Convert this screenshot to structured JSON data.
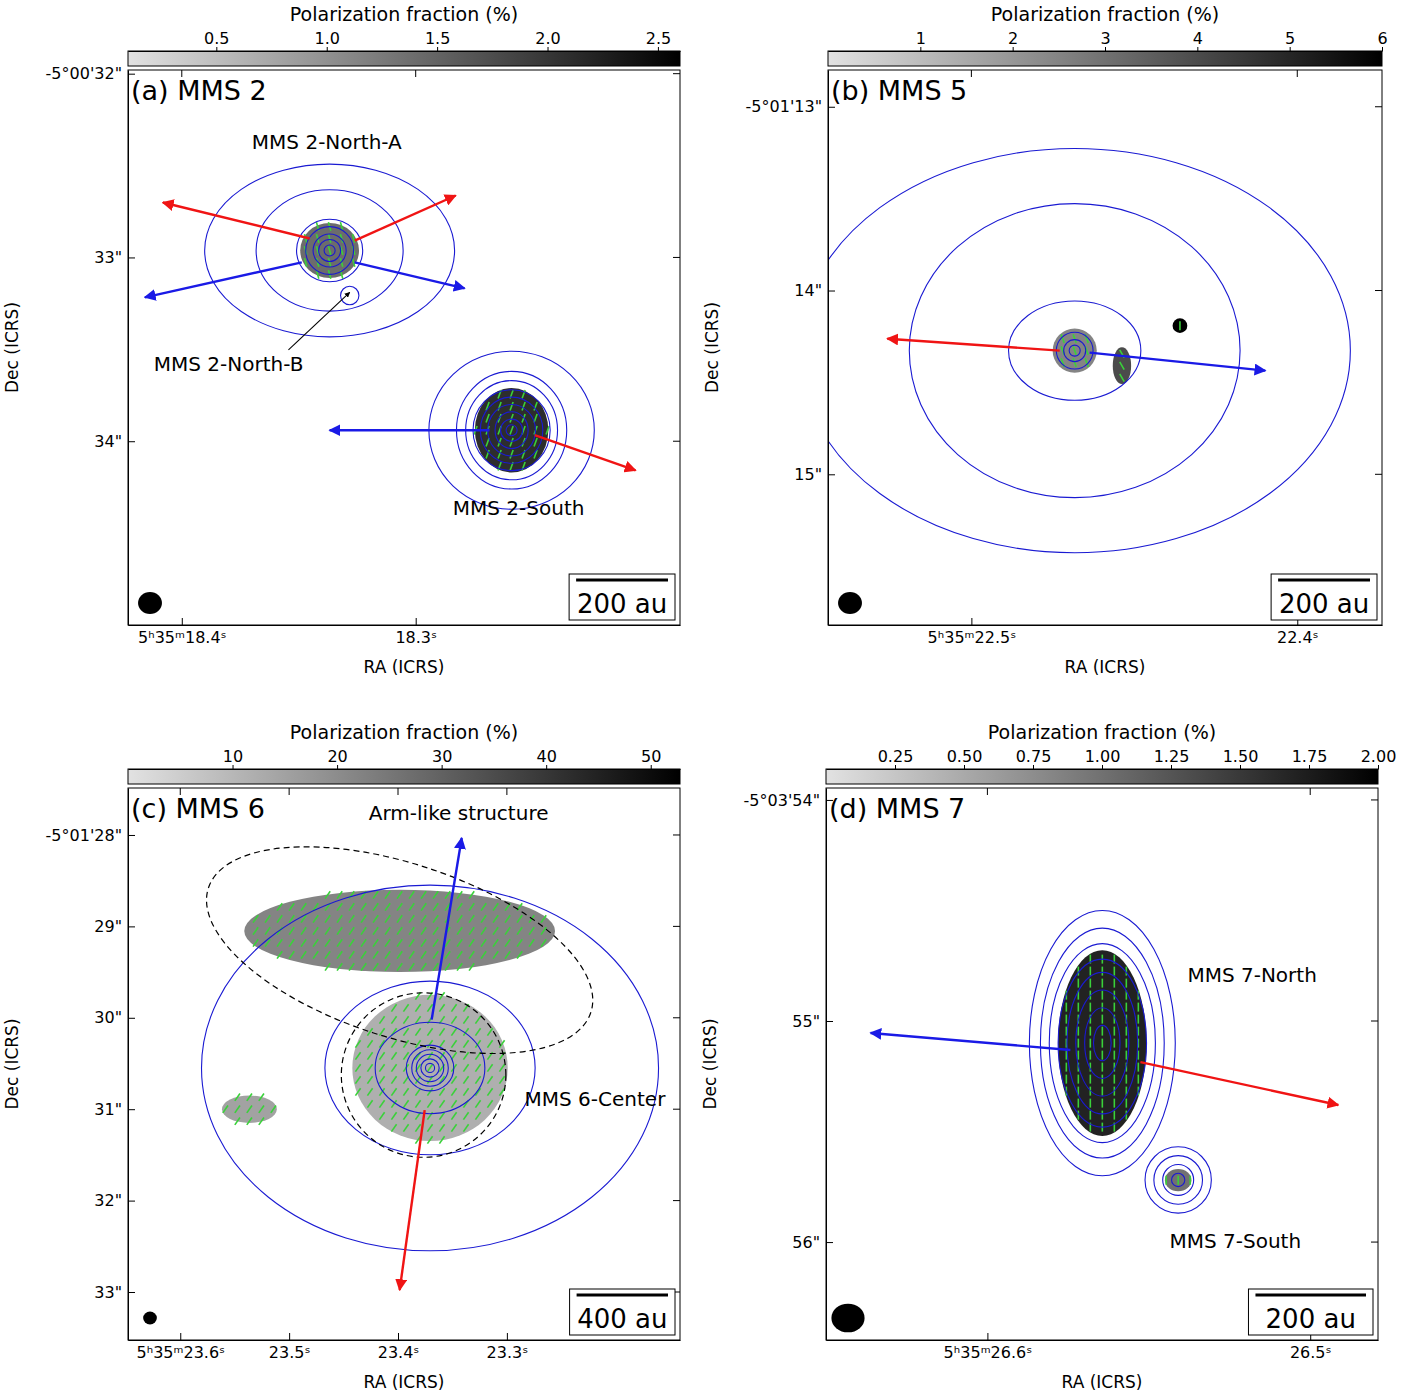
{
  "chart_data": [
    {
      "type": "sky_map",
      "title": "(a) MMS 2",
      "xlabel": "RA (ICRS)",
      "ylabel": "Dec (ICRS)",
      "xlim": [
        18.423,
        18.187
      ],
      "ylim": [
        31.98,
        35.0
      ],
      "xticks": [
        {
          "value": 18.4,
          "label": "5ʰ35ᵐ18.4ˢ"
        },
        {
          "value": 18.3,
          "label": "18.3ˢ"
        }
      ],
      "yticks": [
        {
          "value": 32,
          "label": "-5°00'32\""
        },
        {
          "value": 33,
          "label": "33\""
        },
        {
          "value": 34,
          "label": "34\""
        }
      ],
      "colorbar": {
        "label": "Polarization fraction (%)",
        "range": [
          0.1,
          2.6
        ],
        "ticks": [
          0.5,
          {
            "value": 1,
            "label": "1.0"
          },
          1.5,
          {
            "value": 2,
            "label": "2.0"
          },
          2.5
        ]
      },
      "sources": [
        {
          "ra": 18.3368,
          "dec": 32.962,
          "contours": [
            [
              0.03,
              0.03
            ],
            [
              0.06,
              0.06
            ],
            [
              0.09,
              0.09
            ],
            [
              0.13,
              0.13
            ],
            [
              0.18,
              0.17
            ],
            [
              0.4,
              0.33
            ],
            [
              0.68,
              0.47
            ]
          ]
        },
        {
          "ra": 18.3282,
          "dec": 33.207,
          "contours": [
            [
              0.05,
              0.05
            ]
          ]
        },
        {
          "ra": 18.259,
          "dec": 33.94,
          "contours": [
            [
              0.03,
              0.03
            ],
            [
              0.06,
              0.06
            ],
            [
              0.09,
              0.1
            ],
            [
              0.13,
              0.14
            ],
            [
              0.17,
              0.18
            ],
            [
              0.21,
              0.22
            ],
            [
              0.25,
              0.27
            ],
            [
              0.3,
              0.32
            ],
            [
              0.45,
              0.43
            ]
          ]
        }
      ],
      "polarization": [
        {
          "ra": 18.3368,
          "dec": 32.962,
          "rx": 0.16,
          "ry": 0.15,
          "value": 1.4,
          "pa": 15
        },
        {
          "ra": 18.259,
          "dec": 33.94,
          "rx": 0.2,
          "ry": 0.23,
          "value": 2.1,
          "pa": -20
        }
      ],
      "outflows": [
        {
          "color": "#f01414",
          "start": [
            18.3453,
            32.897
          ],
          "end": [
            18.4081,
            32.701
          ]
        },
        {
          "color": "#f01414",
          "start": [
            18.3261,
            32.908
          ],
          "end": [
            18.2829,
            32.663
          ]
        },
        {
          "color": "#1a1ae6",
          "start": [
            18.3487,
            33.027
          ],
          "end": [
            18.4158,
            33.217
          ]
        },
        {
          "color": "#1a1ae6",
          "start": [
            18.3261,
            33.027
          ],
          "end": [
            18.2791,
            33.168
          ]
        },
        {
          "color": "#1a1ae6",
          "start": [
            18.2684,
            33.94
          ],
          "end": [
            18.3368,
            33.94
          ]
        },
        {
          "color": "#f01414",
          "start": [
            18.2491,
            33.967
          ],
          "end": [
            18.206,
            34.158
          ]
        }
      ],
      "annotations": [
        {
          "text": "MMS 2-North-A",
          "ra": 18.338,
          "dec": 32.38
        },
        {
          "text": "MMS 2-North-B",
          "ra": 18.38,
          "dec": 33.587,
          "arrow_to": [
            18.3282,
            33.19
          ]
        },
        {
          "text": "MMS 2-South",
          "ra": 18.256,
          "dec": 34.37
        }
      ],
      "scalebar": {
        "label": "200 au",
        "length": 0.5
      },
      "beam": [
        0.13,
        0.12
      ]
    },
    {
      "type": "sky_map",
      "title": "(b) MMS 5",
      "xlabel": "RA (ICRS)",
      "ylabel": "Dec (ICRS)",
      "xlim": [
        22.544,
        22.374
      ],
      "ylim": [
        12.8,
        15.82
      ],
      "xticks": [
        {
          "value": 22.5,
          "label": "5ʰ35ᵐ22.5ˢ"
        },
        {
          "value": 22.4,
          "label": "22.4ˢ"
        }
      ],
      "yticks": [
        {
          "value": 13,
          "label": "-5°01'13\""
        },
        {
          "value": 14,
          "label": "14\""
        },
        {
          "value": 15,
          "label": "15\""
        }
      ],
      "colorbar": {
        "label": "Polarization fraction (%)",
        "range": [
          0,
          6
        ],
        "ticks": [
          1,
          2,
          3,
          4,
          5,
          6
        ]
      },
      "sources": [
        {
          "ra": 22.4683,
          "dec": 14.327,
          "contours": [
            [
              0.03,
              0.03
            ],
            [
              0.06,
              0.06
            ],
            [
              0.1,
              0.1
            ],
            [
              0.36,
              0.27
            ],
            [
              0.9,
              0.8
            ],
            [
              1.5,
              1.1
            ]
          ]
        }
      ],
      "polarization": [
        {
          "ra": 22.4683,
          "dec": 14.327,
          "rx": 0.12,
          "ry": 0.12,
          "value": 2.5,
          "pa": 20
        },
        {
          "ra": 22.4538,
          "dec": 14.409,
          "rx": 0.05,
          "ry": 0.1,
          "value": 4,
          "pa": 30
        },
        {
          "ra": 22.436,
          "dec": 14.191,
          "rx": 0.04,
          "ry": 0.04,
          "value": 6,
          "pa": 0
        }
      ],
      "outflows": [
        {
          "color": "#f01414",
          "start": [
            22.4729,
            14.327
          ],
          "end": [
            22.5258,
            14.262
          ]
        },
        {
          "color": "#1a1ae6",
          "start": [
            22.4637,
            14.338
          ],
          "end": [
            22.4098,
            14.436
          ]
        }
      ],
      "scalebar": {
        "label": "200 au",
        "length": 0.5
      },
      "beam": [
        0.13,
        0.12
      ]
    },
    {
      "type": "sky_map",
      "title": "(c) MMS 6",
      "xlabel": "RA (ICRS)",
      "ylabel": "Dec (ICRS)",
      "xlim": [
        23.648,
        23.141
      ],
      "ylim": [
        27.486,
        33.525
      ],
      "xticks": [
        {
          "value": 23.6,
          "label": "5ʰ35ᵐ23.6ˢ"
        },
        {
          "value": 23.5,
          "label": "23.5ˢ"
        },
        {
          "value": 23.4,
          "label": "23.4ˢ"
        },
        {
          "value": 23.3,
          "label": "23.3ˢ"
        }
      ],
      "yticks": [
        {
          "value": 28,
          "label": "-5°01'28\""
        },
        {
          "value": 29,
          "label": "29\""
        },
        {
          "value": 30,
          "label": "30\""
        },
        {
          "value": 31,
          "label": "31\""
        },
        {
          "value": 32,
          "label": "32\""
        },
        {
          "value": 33,
          "label": "33\""
        }
      ],
      "colorbar": {
        "label": "Polarization fraction (%)",
        "range": [
          0,
          52.8
        ],
        "ticks": [
          10,
          20,
          30,
          40,
          50
        ]
      },
      "sources": [
        {
          "ra": 23.3706,
          "dec": 30.549,
          "contours": [
            [
              0.05,
              0.05
            ],
            [
              0.1,
              0.1
            ],
            [
              0.15,
              0.15
            ],
            [
              0.2,
              0.2
            ],
            [
              0.26,
              0.25
            ],
            [
              0.6,
              0.5
            ],
            [
              1.15,
              0.95
            ],
            [
              2.5,
              2.0
            ]
          ]
        }
      ],
      "polarization": [
        {
          "ra": 23.3706,
          "dec": 30.549,
          "rx": 0.85,
          "ry": 0.8,
          "value": 12,
          "pa": -35
        },
        {
          "ra": 23.3985,
          "dec": 29.05,
          "rx": 1.7,
          "ry": 0.45,
          "value": 22,
          "pa": -35
        },
        {
          "ra": 23.5365,
          "dec": 31.0,
          "rx": 0.3,
          "ry": 0.15,
          "value": 15,
          "pa": -35
        }
      ],
      "outflows": [
        {
          "color": "#1a1ae6",
          "start": [
            23.3691,
            30.02
          ],
          "end": [
            23.3415,
            28.033
          ]
        },
        {
          "color": "#f01414",
          "start": [
            23.3755,
            31.01
          ],
          "end": [
            23.3985,
            32.978
          ]
        }
      ],
      "regions": [
        {
          "ra": 23.3765,
          "dec": 30.626,
          "rx": 0.9,
          "ry": 0.9,
          "angle": 0
        },
        {
          "ra": 23.3985,
          "dec": 29.26,
          "rx": 2.2,
          "ry": 0.95,
          "angle": 18
        }
      ],
      "annotations": [
        {
          "text": "Arm-like structure",
          "ra": 23.3443,
          "dec": 27.78
        },
        {
          "text": "MMS 6-Center",
          "ra": 23.2191,
          "dec": 30.9
        }
      ],
      "scalebar": {
        "label": "400 au",
        "length": 1.0
      },
      "beam": [
        0.15,
        0.14
      ]
    },
    {
      "type": "sky_map",
      "title": "(d) MMS 7",
      "xlabel": "RA (ICRS)",
      "ylabel": "Dec (ICRS)",
      "xlim": [
        26.65,
        26.479
      ],
      "ylim": [
        53.946,
        56.443
      ],
      "xticks": [
        {
          "value": 26.6,
          "label": "5ʰ35ᵐ26.6ˢ"
        },
        {
          "value": 26.5,
          "label": "26.5ˢ"
        }
      ],
      "yticks": [
        {
          "value": 54,
          "label": "-5°03'54\""
        },
        {
          "value": 55,
          "label": "55\""
        },
        {
          "value": 56,
          "label": "56\""
        }
      ],
      "colorbar": {
        "label": "Polarization fraction (%)",
        "range": [
          0,
          2
        ],
        "ticks": [
          0.25,
          {
            "value": 0.5,
            "label": "0.50"
          },
          0.75,
          {
            "value": 1,
            "label": "1.00"
          },
          1.25,
          {
            "value": 1.5,
            "label": "1.50"
          },
          1.75,
          {
            "value": 2,
            "label": "2.00"
          }
        ]
      },
      "sources": [
        {
          "ra": 26.5644,
          "dec": 55.1,
          "contours": [
            [
              0.04,
              0.08
            ],
            [
              0.08,
              0.16
            ],
            [
              0.12,
              0.24
            ],
            [
              0.16,
              0.32
            ],
            [
              0.2,
              0.38
            ],
            [
              0.24,
              0.45
            ],
            [
              0.28,
              0.52
            ],
            [
              0.33,
              0.6
            ]
          ]
        },
        {
          "ra": 26.5409,
          "dec": 55.719,
          "contours": [
            [
              0.03,
              0.03
            ],
            [
              0.07,
              0.07
            ],
            [
              0.11,
              0.11
            ],
            [
              0.15,
              0.15
            ]
          ]
        }
      ],
      "polarization": [
        {
          "ra": 26.5644,
          "dec": 55.1,
          "rx": 0.2,
          "ry": 0.42,
          "value": 1.7,
          "pa": 0
        },
        {
          "ra": 26.5409,
          "dec": 55.72,
          "rx": 0.06,
          "ry": 0.05,
          "value": 1.0,
          "pa": 0
        }
      ],
      "outflows": [
        {
          "color": "#1a1ae6",
          "start": [
            26.5743,
            55.131
          ],
          "end": [
            26.6362,
            55.054
          ]
        },
        {
          "color": "#f01414",
          "start": [
            26.5526,
            55.186
          ],
          "end": [
            26.4913,
            55.38
          ]
        }
      ],
      "annotations": [
        {
          "text": "MMS 7-North",
          "ra": 26.518,
          "dec": 54.8
        },
        {
          "text": "MMS 7-South",
          "ra": 26.5232,
          "dec": 56.0
        }
      ],
      "scalebar": {
        "label": "200 au",
        "length": 0.5
      },
      "beam": [
        0.15,
        0.13
      ]
    }
  ]
}
